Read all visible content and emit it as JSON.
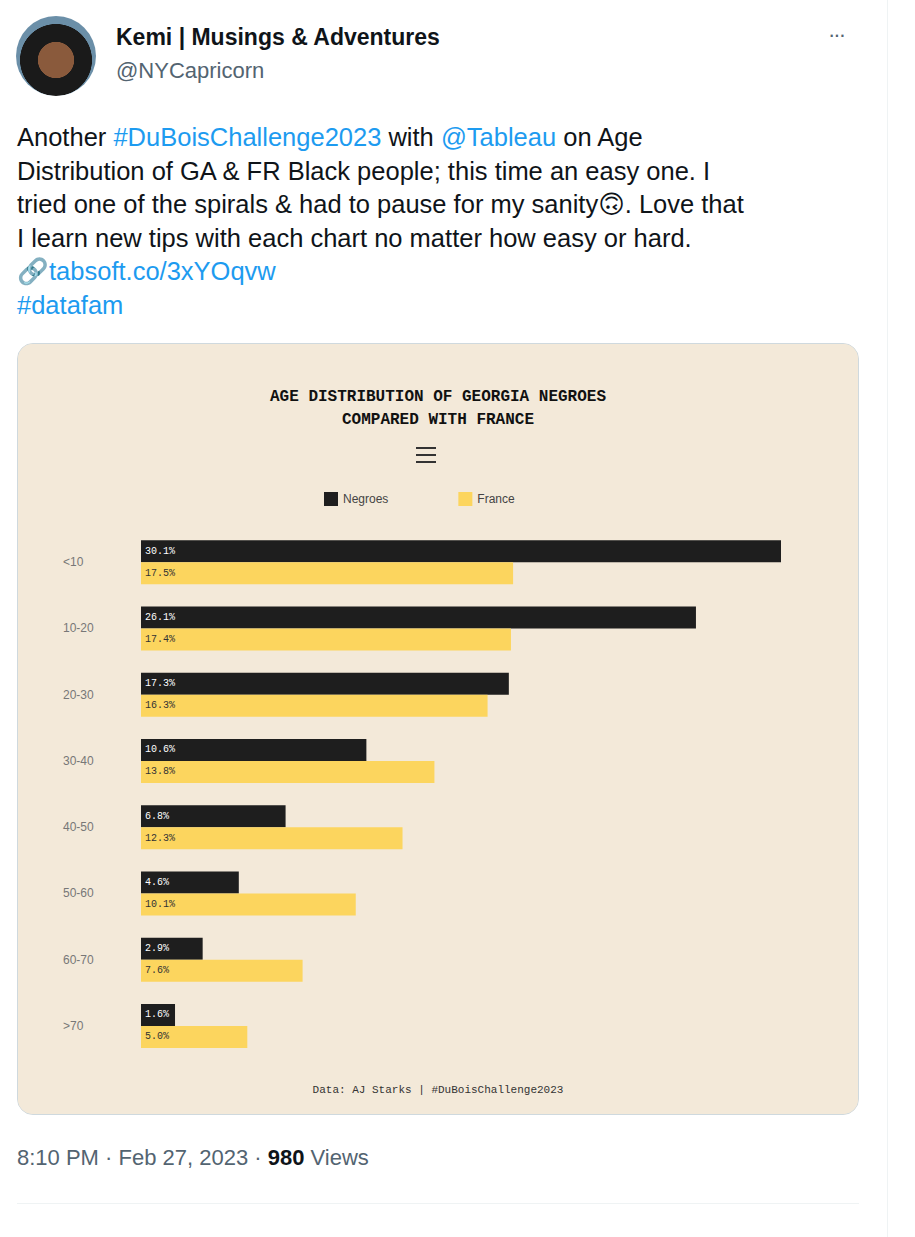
{
  "tweet": {
    "name": "Kemi | Musings & Adventures",
    "handle": "@NYCapricorn",
    "menu": "···",
    "lines": [
      [
        {
          "text": "Another "
        },
        {
          "text": "#DuBoisChallenge2023",
          "link": true
        },
        {
          "text": " with "
        },
        {
          "text": "@Tableau",
          "link": true
        },
        {
          "text": " on Age"
        }
      ],
      [
        {
          "text": "Distribution of GA & FR Black people; this time an easy one. I"
        }
      ],
      [
        {
          "text": "tried one of the spirals & had to pause for my sanity🙃. Love that"
        }
      ],
      [
        {
          "text": "I learn new tips with each chart no matter how easy or hard."
        }
      ],
      [
        {
          "text": "🔗"
        },
        {
          "text": "tabsoft.co/3xYOqvw",
          "link": true
        }
      ],
      [
        {
          "text": "#datafam",
          "link": true
        }
      ]
    ],
    "meta": [
      {
        "text": "8:10 PM · Feb 27, 2023 · "
      },
      {
        "text": "980",
        "bold": true
      },
      {
        "text": " Views"
      }
    ]
  },
  "chart_data": {
    "type": "bar",
    "title": "AGE DISTRIBUTION OF GEORGIA NEGROES\nCOMPARED WITH FRANCE",
    "caption": "Data: AJ Starks | #DuBoisChallenge2023",
    "orientation": "horizontal",
    "categories": [
      "<10",
      "10-20",
      "20-30",
      "30-40",
      "40-50",
      "50-60",
      "60-70",
      ">70"
    ],
    "series": [
      {
        "name": "Negroes",
        "color": "#1e1e1e",
        "values": [
          30.1,
          26.1,
          17.3,
          10.6,
          6.8,
          4.6,
          2.9,
          1.6
        ],
        "value_labels": [
          "30.1%",
          "26.1%",
          "17.3%",
          "10.6%",
          "6.8%",
          "4.6%",
          "2.9%",
          "1.6%"
        ]
      },
      {
        "name": "France",
        "color": "#fcd55e",
        "values": [
          17.5,
          17.4,
          16.3,
          13.8,
          12.3,
          10.1,
          7.6,
          5.0
        ],
        "value_labels": [
          "17.5%",
          "17.4%",
          "16.3%",
          "13.8%",
          "12.3%",
          "10.1%",
          "7.6%",
          "5.0%"
        ]
      }
    ],
    "xlim": [
      0,
      30.1
    ],
    "data_labels": true,
    "tick_labels": "y",
    "legend": "top",
    "grid": false
  }
}
